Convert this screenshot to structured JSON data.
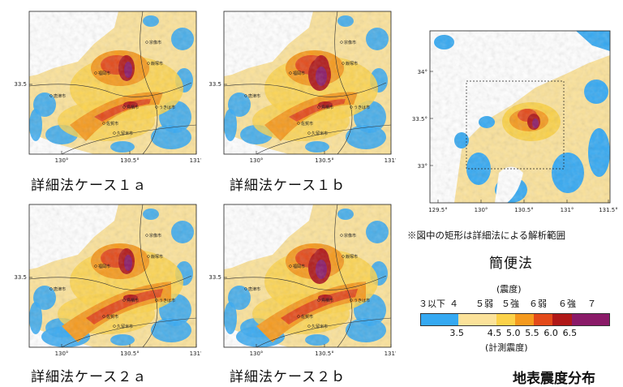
{
  "colors": {
    "sea": "#ffffff",
    "low": "#35a9f2",
    "c4": "#fbe29a",
    "c5w": "#fbd24a",
    "c5s": "#f59a1e",
    "c6w": "#e34a1a",
    "c6s": "#b01818",
    "c7": "#8a1a68",
    "border": "#333333"
  },
  "panels": [
    {
      "id": "1a",
      "caption": "詳細法ケース１ａ",
      "y_tick": "33.5",
      "x_ticks": [
        "130°",
        "130.5°",
        "131°"
      ]
    },
    {
      "id": "1b",
      "caption": "詳細法ケース１ｂ",
      "y_tick": "33.5",
      "x_ticks": [
        "130°",
        "130.5°",
        "131°"
      ]
    },
    {
      "id": "2a",
      "caption": "詳細法ケース２ａ",
      "y_tick": "33.5",
      "x_ticks": [
        "130°",
        "130.5°",
        "131°"
      ]
    },
    {
      "id": "2b",
      "caption": "詳細法ケース２ｂ",
      "y_tick": "33.5",
      "x_ticks": [
        "130°",
        "130.5°",
        "131°"
      ]
    }
  ],
  "cities": {
    "fukuoka": "福岡市",
    "iizuka": "飯塚市",
    "munakata": "宗像市",
    "karatsu": "唐津市",
    "saga": "佐賀市",
    "kurume": "久留米市",
    "ukiha": "うきは市",
    "tosu": "鳥栖市"
  },
  "overview": {
    "caption": "簡便法",
    "note": "※図中の矩形は詳細法による解析範囲",
    "y_ticks": [
      "34°",
      "33.5°",
      "33°"
    ],
    "x_ticks": [
      "129.5°",
      "130°",
      "130.5°",
      "131°",
      "131.5°"
    ]
  },
  "legend": {
    "top_label": "(震度)",
    "intensity_classes": [
      "３以下",
      "４",
      "５弱",
      "５強",
      "６弱",
      "６強",
      "７"
    ],
    "instrumental_values": [
      "3.5",
      "4.5",
      "5.0",
      "5.5",
      "6.0",
      "6.5"
    ],
    "bottom_label": "(計測震度)"
  },
  "figure_title": "地表震度分布"
}
